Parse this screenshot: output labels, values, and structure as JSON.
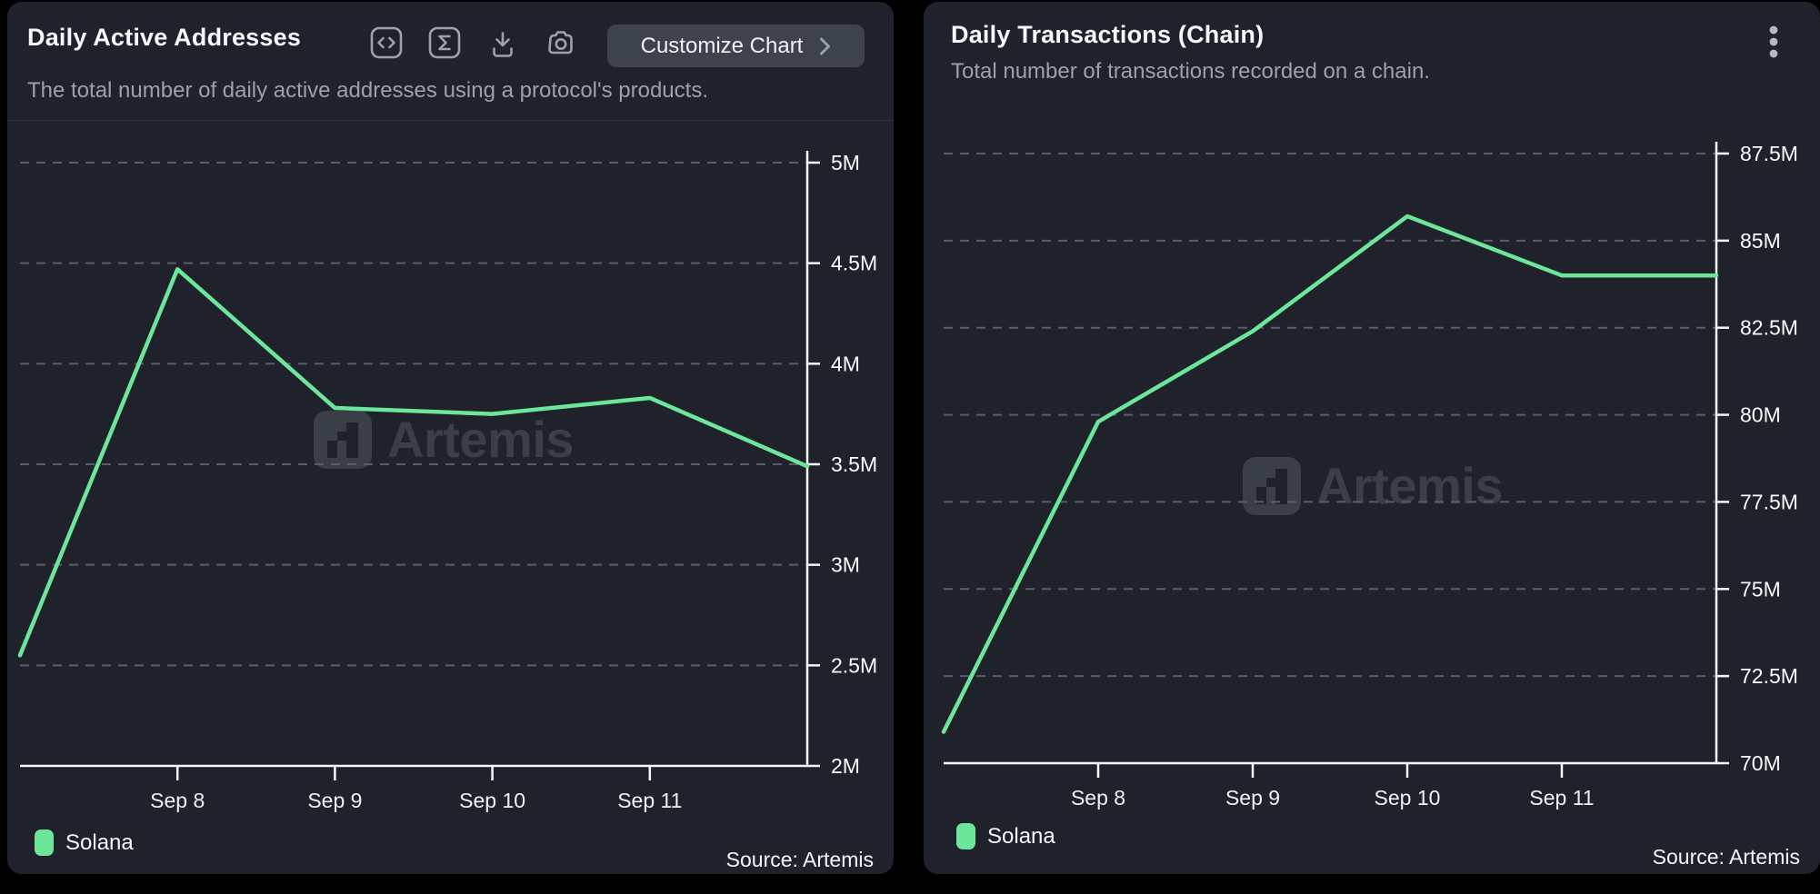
{
  "chart_data": [
    {
      "type": "line",
      "title": "Daily Active Addresses",
      "subtitle": "The total number of daily active addresses using a protocol's products.",
      "watermark": "Artemis",
      "source": "Source: Artemis",
      "legend": [
        {
          "label": "Solana",
          "color": "#6ce69b"
        }
      ],
      "series": [
        {
          "name": "Solana",
          "color": "#6ce69b",
          "values": [
            2550000,
            4470000,
            3780000,
            3750000,
            3830000,
            3490000
          ]
        }
      ],
      "x_ticks": [
        {
          "i": 1,
          "label": "Sep 8"
        },
        {
          "i": 2,
          "label": "Sep 9"
        },
        {
          "i": 3,
          "label": "Sep 10"
        },
        {
          "i": 4,
          "label": "Sep 11"
        }
      ],
      "y_ticks": [
        {
          "value": 5000000,
          "label": "5M"
        },
        {
          "value": 4500000,
          "label": "4.5M"
        },
        {
          "value": 4000000,
          "label": "4M"
        },
        {
          "value": 3500000,
          "label": "3.5M"
        },
        {
          "value": 3000000,
          "label": "3M"
        },
        {
          "value": 2500000,
          "label": "2.5M"
        },
        {
          "value": 2000000,
          "label": "2M"
        }
      ],
      "ylim": [
        2000000,
        5000000
      ],
      "grid": "horizontal-dashed",
      "y_axis_side": "right",
      "legend_position": "bottom-left"
    },
    {
      "type": "line",
      "title": "Daily Transactions (Chain)",
      "subtitle": "Total number of transactions recorded on a chain.",
      "watermark": "Artemis",
      "source": "Source: Artemis",
      "legend": [
        {
          "label": "Solana",
          "color": "#6ce69b"
        }
      ],
      "series": [
        {
          "name": "Solana",
          "color": "#6ce69b",
          "values": [
            70900000,
            79800000,
            82400000,
            85700000,
            84000000,
            84000000
          ]
        }
      ],
      "x_ticks": [
        {
          "i": 1,
          "label": "Sep 8"
        },
        {
          "i": 2,
          "label": "Sep 9"
        },
        {
          "i": 3,
          "label": "Sep 10"
        },
        {
          "i": 4,
          "label": "Sep 11"
        }
      ],
      "y_ticks": [
        {
          "value": 87500000,
          "label": "87.5M"
        },
        {
          "value": 85000000,
          "label": "85M"
        },
        {
          "value": 82500000,
          "label": "82.5M"
        },
        {
          "value": 80000000,
          "label": "80M"
        },
        {
          "value": 77500000,
          "label": "77.5M"
        },
        {
          "value": 75000000,
          "label": "75M"
        },
        {
          "value": 72500000,
          "label": "72.5M"
        },
        {
          "value": 70000000,
          "label": "70M"
        }
      ],
      "ylim": [
        70000000,
        87500000
      ],
      "grid": "horizontal-dashed",
      "y_axis_side": "right",
      "legend_position": "bottom-left"
    }
  ],
  "toolbar": {
    "customize_button": "Customize Chart",
    "icons": [
      "code-icon",
      "sigma-icon",
      "download-icon",
      "camera-icon"
    ]
  },
  "menu": {
    "icon": "kebab-menu-icon"
  },
  "colors": {
    "panel_background": "#1f222a",
    "page_background": "#000000",
    "accent_line": "#6ce69b",
    "axis": "#f6f7f9",
    "gridline": "#585d69",
    "watermark": "#3a3e47"
  }
}
